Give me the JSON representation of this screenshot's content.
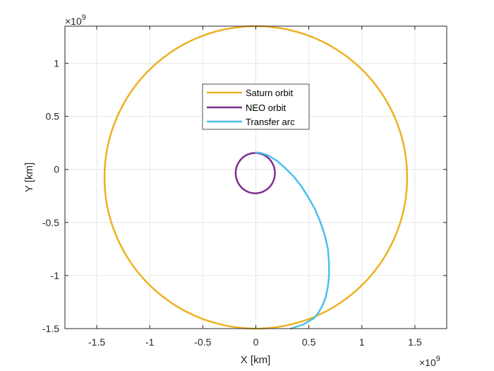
{
  "chart_data": {
    "type": "line",
    "title": "",
    "xlabel": "X [km]",
    "ylabel": "Y [km]",
    "x_exponent_label": "×10",
    "x_exponent_power": "9",
    "y_exponent_label": "×10",
    "y_exponent_power": "9",
    "xlim": [
      -1.8,
      1.8
    ],
    "ylim": [
      -1.5,
      1.35
    ],
    "xticks": [
      -1.5,
      -1,
      -0.5,
      0,
      0.5,
      1,
      1.5
    ],
    "xtick_labels": [
      "-1.5",
      "-1",
      "-0.5",
      "0",
      "0.5",
      "1",
      "1.5"
    ],
    "yticks": [
      -1.5,
      -1,
      -0.5,
      0,
      0.5,
      1
    ],
    "ytick_labels": [
      "-1.5",
      "-1",
      "-0.5",
      "0",
      "0.5",
      "1"
    ],
    "grid": true,
    "legend_position": "top-center",
    "series": [
      {
        "name": "Saturn orbit",
        "color": "#EDB120",
        "shape": "ellipse",
        "center": [
          0,
          -0.075
        ],
        "semi_axes": [
          1.427,
          1.425
        ],
        "values_note": ""
      },
      {
        "name": "NEO orbit",
        "color": "#7E2F8E",
        "shape": "ellipse",
        "center": [
          -0.005,
          -0.035
        ],
        "semi_axes": [
          0.185,
          0.19
        ],
        "values_note": ""
      },
      {
        "name": "Transfer arc",
        "color": "#4DBEEE",
        "shape": "arc",
        "x": [
          0,
          0.05,
          0.12,
          0.2,
          0.28,
          0.36,
          0.43,
          0.5,
          0.56,
          0.61,
          0.65,
          0.68,
          0.69,
          0.69,
          0.68,
          0.66,
          0.63,
          0.59,
          0.55,
          0.5,
          0.45,
          0.39,
          0.33
        ],
        "y": [
          0.16,
          0.155,
          0.13,
          0.08,
          0.01,
          -0.07,
          -0.16,
          -0.27,
          -0.38,
          -0.5,
          -0.62,
          -0.75,
          -0.88,
          -1.0,
          -1.1,
          -1.2,
          -1.28,
          -1.35,
          -1.4,
          -1.43,
          -1.46,
          -1.48,
          -1.5
        ]
      }
    ]
  }
}
